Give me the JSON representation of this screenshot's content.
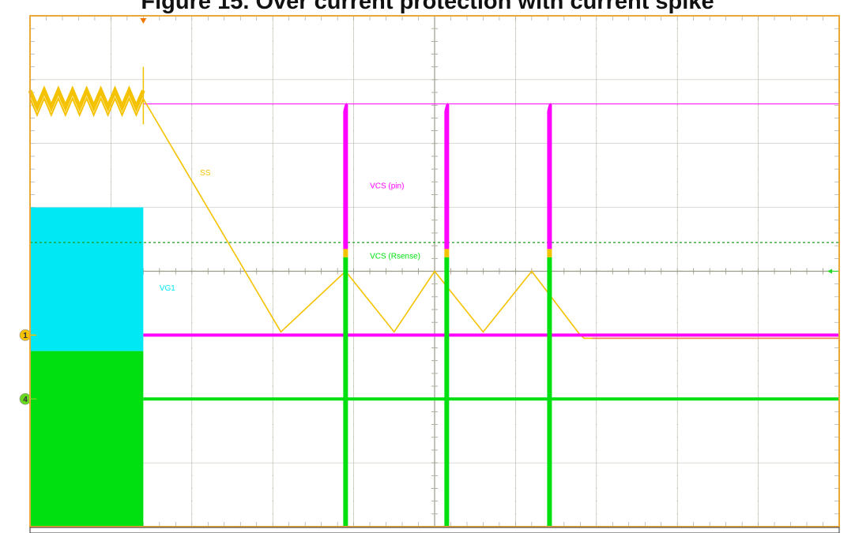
{
  "title": "Figure 15. Over current protection with current spike",
  "colors": {
    "background": "#ffffff",
    "frame": "#e8a83a",
    "grid": "#b4b4a8",
    "center_axis": "#9a9a88",
    "ss": "#f5c200",
    "vcs_pin": "#ff00ff",
    "vcs_rsense": "#00e010",
    "vg1": "#00e8f4",
    "threshold": "#1a9a1a",
    "marker_1": "#f5c200",
    "marker_4": "#6ad820",
    "trigger": "#f07800",
    "level_arrow": "#22dd22"
  },
  "chart_data": {
    "type": "line",
    "title": "",
    "xlabel": "",
    "ylabel": "",
    "grid": true,
    "divisions": {
      "x": 10,
      "y": 8
    },
    "xlim": [
      0,
      10
    ],
    "ylim": [
      -4,
      4
    ],
    "markers": [
      {
        "label": "1",
        "level": -1.0,
        "color_key": "marker_1",
        "name": "channel-1-marker"
      },
      {
        "label": "4",
        "level": -2.0,
        "color_key": "marker_4",
        "name": "channel-4-marker"
      }
    ],
    "trigger_x": 1.4,
    "threshold_level": 0.45,
    "ss_ripple": {
      "x": [
        0.0,
        1.4
      ],
      "center": 2.7,
      "amplitude": 0.13,
      "cycles": 8
    },
    "series": [
      {
        "name": "SS",
        "color_key": "ss",
        "x": [
          1.4,
          3.1,
          3.9,
          4.5,
          5.0,
          5.6,
          6.2,
          6.8,
          6.85,
          6.95,
          10.0
        ],
        "y": [
          2.7,
          -0.95,
          0.0,
          -0.95,
          0.0,
          -0.95,
          0.0,
          -1.0,
          -1.05,
          -1.05,
          -1.05
        ],
        "label": "SS",
        "label_at": [
          2.1,
          1.5
        ]
      },
      {
        "name": "VCS (pin)",
        "color_key": "vcs_pin",
        "x": [
          1.4,
          10.0
        ],
        "y": [
          -1.0,
          -1.0
        ],
        "label": "VCS (pin)",
        "label_at": [
          4.2,
          1.3
        ]
      },
      {
        "name": "VCS (Rsense)",
        "color_key": "vcs_rsense",
        "x": [
          1.4,
          10.0
        ],
        "y": [
          -2.0,
          -2.0
        ],
        "label": "VCS (Rsense)",
        "label_at": [
          4.2,
          0.2
        ]
      },
      {
        "name": "VG1",
        "color_key": "vg1",
        "x": [
          0.0,
          1.4
        ],
        "y": [
          0.8,
          0.8
        ],
        "label": "VG1",
        "label_at": [
          1.6,
          -0.3
        ]
      }
    ],
    "ref_line": {
      "level": 2.62,
      "from_x": 1.4,
      "color_key": "vcs_pin"
    },
    "spikes": [
      {
        "x": 3.9,
        "top": 2.65,
        "pin_base": 0.35,
        "rsense_top": 0.22
      },
      {
        "x": 5.15,
        "top": 2.65,
        "pin_base": 0.35,
        "rsense_top": 0.22
      },
      {
        "x": 6.42,
        "top": 2.65,
        "pin_base": 0.35,
        "rsense_top": 0.22
      }
    ],
    "initial_blocks": [
      {
        "color_key": "vg1",
        "x": [
          0.0,
          1.4
        ],
        "y": [
          -1.25,
          1.0
        ]
      },
      {
        "color_key": "vcs_rsense",
        "x": [
          0.0,
          1.4
        ],
        "y": [
          -4.0,
          -1.25
        ]
      }
    ]
  }
}
